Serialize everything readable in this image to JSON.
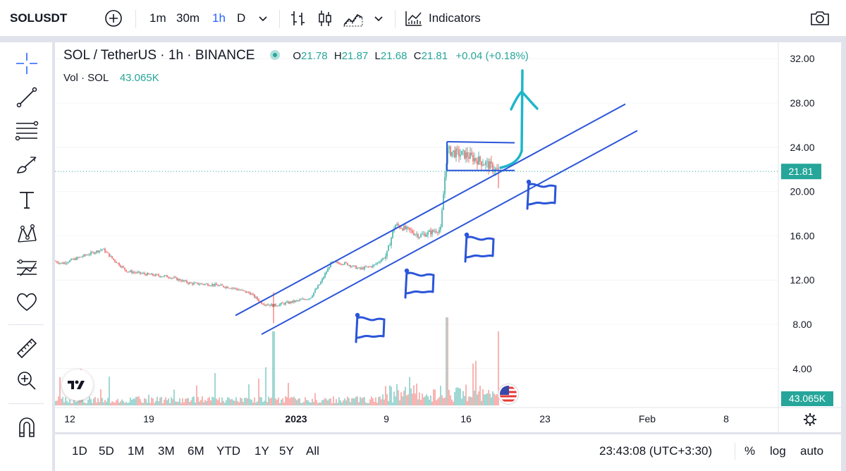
{
  "toolbar": {
    "symbol": "SOLUSDT",
    "intervals": [
      "1m",
      "30m",
      "1h",
      "D"
    ],
    "active_interval": "1h",
    "indicators_label": "Indicators"
  },
  "legend": {
    "title": "SOL / TetherUS · 1h · BINANCE",
    "open_label": "O",
    "open": "21.78",
    "high_label": "H",
    "high": "21.87",
    "low_label": "L",
    "low": "21.68",
    "close_label": "C",
    "close": "21.81",
    "change": "+0.04 (+0.18%)",
    "volume_label": "Vol · SOL",
    "volume": "43.065K"
  },
  "colors": {
    "up": "#26a69a",
    "down": "#ef5350",
    "drawing_blue": "#2b55d9",
    "arrow_cyan": "#1fb6c9",
    "accent": "#2962ff"
  },
  "chart_data": {
    "type": "candlestick",
    "symbol": "SOL / TetherUS",
    "interval": "1h",
    "exchange": "BINANCE",
    "y_ticks": [
      "32.00",
      "28.00",
      "24.00",
      "20.00",
      "16.00",
      "12.00",
      "8.00",
      "4.00"
    ],
    "ylim": [
      2.5,
      32.5
    ],
    "x_ticks": [
      "12",
      "19",
      "2023",
      "9",
      "16",
      "23",
      "Feb",
      "8"
    ],
    "last_price": "21.81",
    "last_volume": "43.065K",
    "price_path": [
      [
        "12",
        13.7
      ],
      [
        "Dec 13",
        13.5
      ],
      [
        "Dec 14",
        14.8
      ],
      [
        "Dec 15",
        13.9
      ],
      [
        "Dec 16",
        12.8
      ],
      [
        "Dec 18",
        12.5
      ],
      [
        "Dec 20",
        12.3
      ],
      [
        "Dec 22",
        11.7
      ],
      [
        "Dec 24",
        11.6
      ],
      [
        "Dec 26",
        11.3
      ],
      [
        "Dec 28",
        10.8
      ],
      [
        "Dec 29",
        9.9
      ],
      [
        "Dec 30",
        9.7
      ],
      [
        "2023",
        10.1
      ],
      [
        "Jan 2",
        10.4
      ],
      [
        "Jan 3",
        11.8
      ],
      [
        "Jan 4",
        13.6
      ],
      [
        "Jan 5",
        13.5
      ],
      [
        "Jan 7",
        13.0
      ],
      [
        "Jan 8",
        13.3
      ],
      [
        "9",
        14.2
      ],
      [
        "Jan 10",
        17.0
      ],
      [
        "Jan 11",
        16.5
      ],
      [
        "Jan 12",
        16.0
      ],
      [
        "Jan 13",
        16.6
      ],
      [
        "Jan 14",
        23.7
      ],
      [
        "Jan 15",
        23.4
      ],
      [
        "16",
        23.3
      ],
      [
        "Jan 17",
        22.5
      ],
      [
        "Jan 18",
        21.81
      ]
    ],
    "volume_spikes": [
      [
        "2023",
        43.065
      ],
      [
        "Jan 14",
        43.065
      ],
      [
        "Jan 18",
        43.065
      ]
    ],
    "annotations": [
      "ascending channel",
      "bull flag",
      "breakout arrow"
    ]
  },
  "bottom": {
    "ranges": [
      "1D",
      "5D",
      "1M",
      "3M",
      "6M",
      "YTD",
      "1Y",
      "5Y",
      "All"
    ],
    "time": "23:43:08 (UTC+3:30)",
    "percent_label": "%",
    "log_label": "log",
    "auto_label": "auto"
  }
}
